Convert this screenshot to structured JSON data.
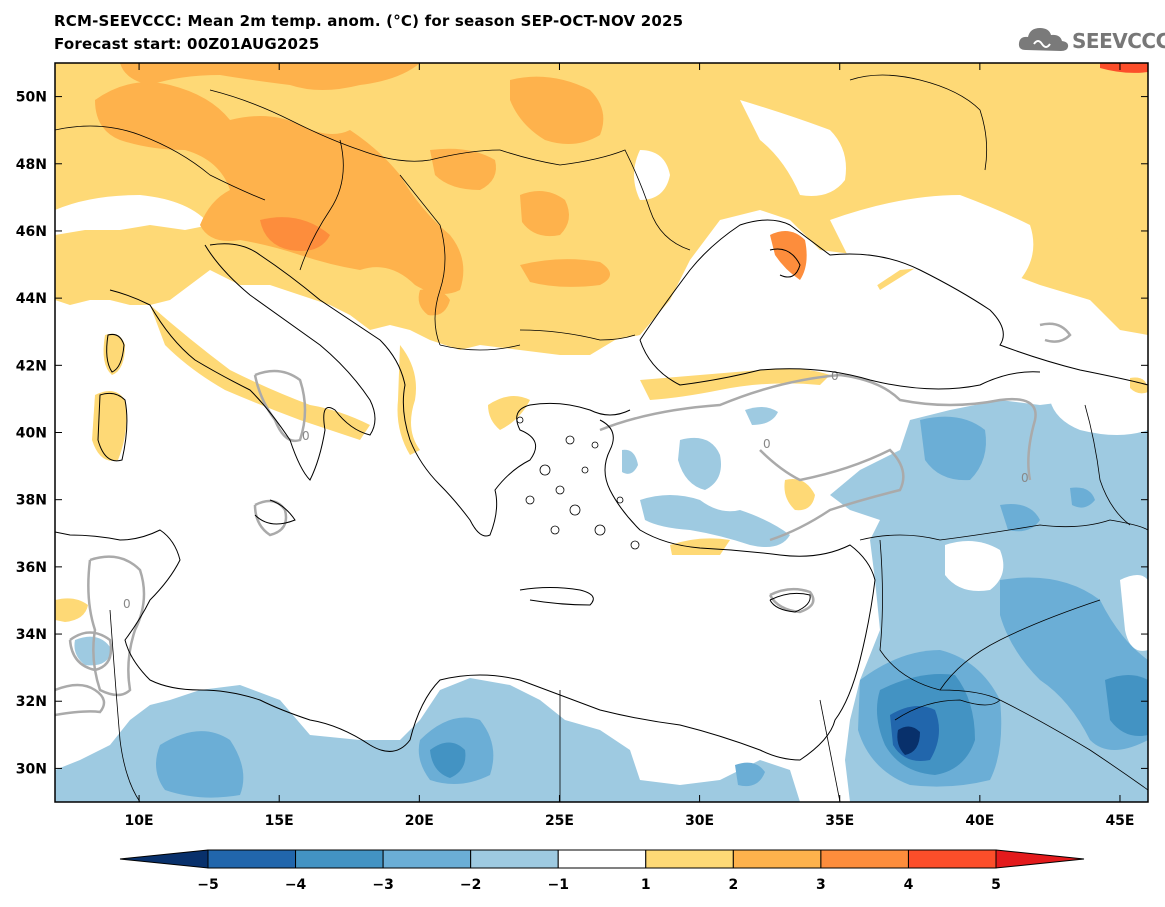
{
  "header": {
    "title_line1": "RCM-SEEVCCC: Mean 2m temp. anom. (°C) for season SEP-OCT-NOV 2025",
    "title_line2": "Forecast start: 00Z01AUG2025",
    "logo_text": "SEEVCCC",
    "logo_icon": "cloud-icon"
  },
  "map": {
    "lon_range": [
      7,
      46
    ],
    "lat_range": [
      29,
      51
    ],
    "lon_ticks": [
      "10E",
      "15E",
      "20E",
      "25E",
      "30E",
      "35E",
      "40E",
      "45E"
    ],
    "lon_tick_values": [
      10,
      15,
      20,
      25,
      30,
      35,
      40,
      45
    ],
    "lat_ticks": [
      "30N",
      "32N",
      "34N",
      "36N",
      "38N",
      "40N",
      "42N",
      "44N",
      "46N",
      "48N",
      "50N"
    ],
    "lat_tick_values": [
      30,
      32,
      34,
      36,
      38,
      40,
      42,
      44,
      46,
      48,
      50
    ],
    "contour_label": "0"
  },
  "colorbar": {
    "labels": [
      "−5",
      "−4",
      "−3",
      "−2",
      "−1",
      "1",
      "2",
      "3",
      "4",
      "5"
    ],
    "colors": [
      "#08306b",
      "#2166ac",
      "#4393c3",
      "#6baed6",
      "#9ecae1",
      "#ffffff",
      "#fed976",
      "#feb24c",
      "#fd8d3c",
      "#fc4e2a",
      "#e31a1c"
    ]
  }
}
